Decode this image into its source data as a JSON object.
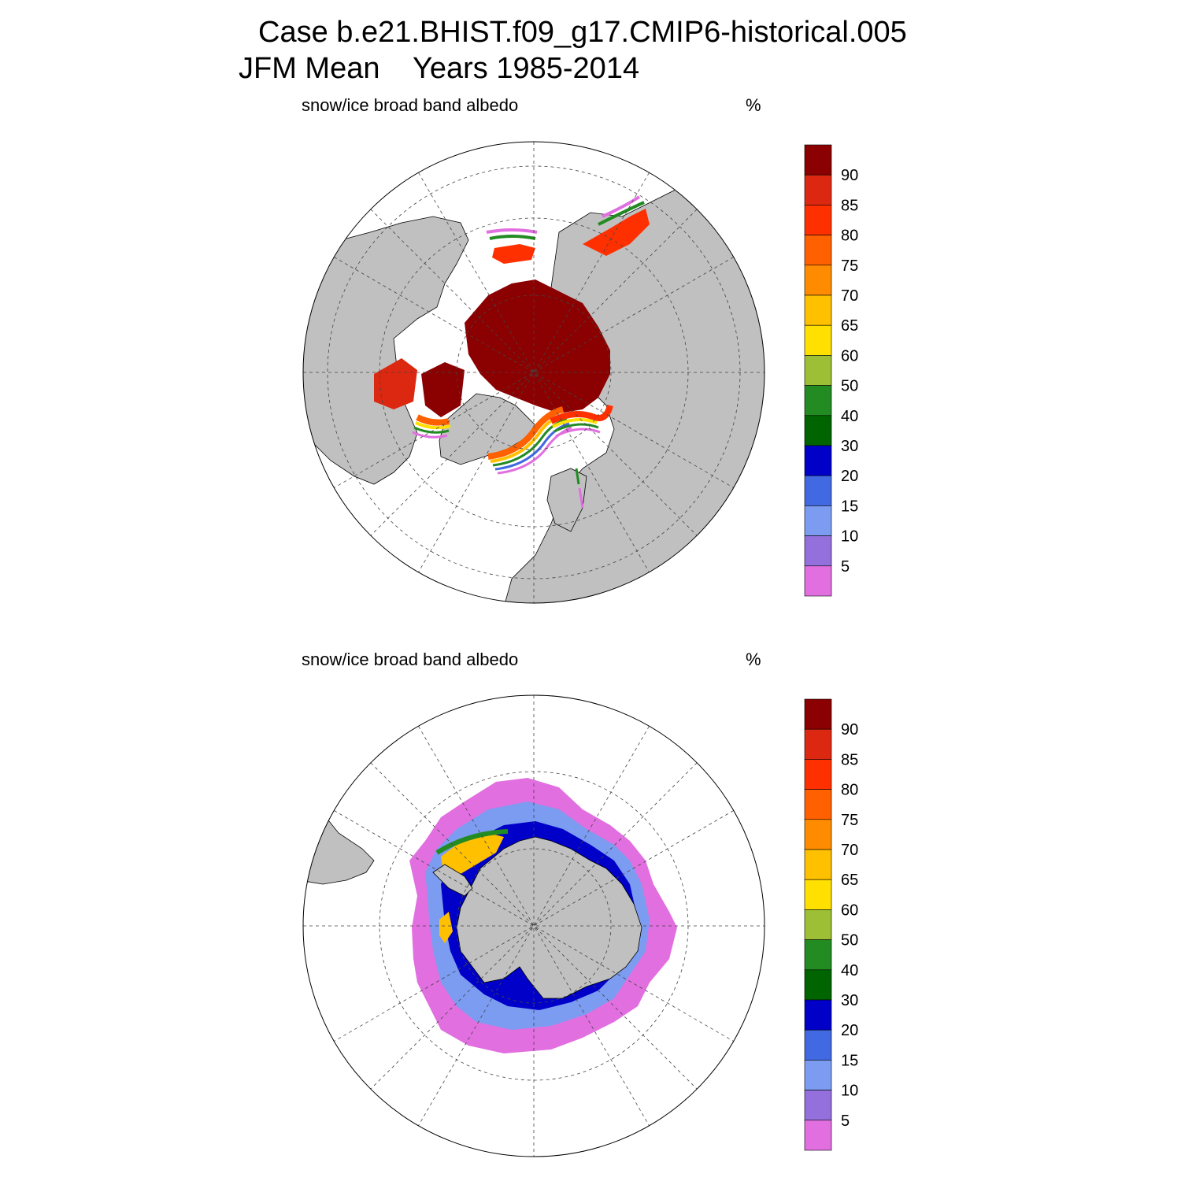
{
  "title": {
    "line1": "Case b.e21.BHIST.f09_g17.CMIP6-historical.005",
    "line2": "JFM Mean    Years 1985-2014"
  },
  "panels": [
    {
      "id": "north",
      "hemisphere": "north",
      "variable_label": "snow/ice broad band albedo",
      "units_label": "%"
    },
    {
      "id": "south",
      "hemisphere": "south",
      "variable_label": "snow/ice broad band albedo",
      "units_label": "%"
    }
  ],
  "colorbar": {
    "levels": [
      "5",
      "10",
      "15",
      "20",
      "30",
      "40",
      "50",
      "60",
      "65",
      "70",
      "75",
      "80",
      "85",
      "90"
    ],
    "colors": [
      "#e26fe0",
      "#9370db",
      "#7b9cf0",
      "#4169e1",
      "#0000c8",
      "#006400",
      "#228b22",
      "#9dbf35",
      "#ffe000",
      "#ffc000",
      "#ff8c00",
      "#ff6000",
      "#ff3000",
      "#dc2810",
      "#8b0000"
    ]
  },
  "map_colors": {
    "land": "#c0c0c0",
    "ocean": "#ffffff",
    "grid": "#444444"
  }
}
